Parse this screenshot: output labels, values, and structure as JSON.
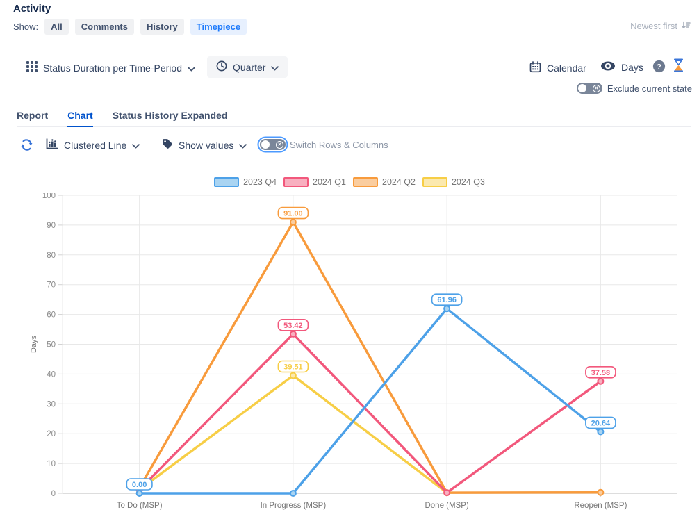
{
  "header": {
    "title": "Activity",
    "show_label": "Show:",
    "filters": [
      {
        "label": "All",
        "active": false
      },
      {
        "label": "Comments",
        "active": false
      },
      {
        "label": "History",
        "active": false
      },
      {
        "label": "Timepiece",
        "active": true
      }
    ],
    "sort_label": "Newest first"
  },
  "toolbar": {
    "report_selector": "Status Duration per Time-Period",
    "period_selector": "Quarter",
    "calendar_label": "Calendar",
    "unit_label": "Days",
    "exclude_toggle_label": "Exclude current state"
  },
  "tabs": [
    {
      "label": "Report",
      "active": false
    },
    {
      "label": "Chart",
      "active": true
    },
    {
      "label": "Status History Expanded",
      "active": false
    }
  ],
  "chart_toolbar": {
    "chart_type_label": "Clustered Line",
    "show_values_label": "Show values",
    "switch_label": "Switch Rows & Columns"
  },
  "chart_data": {
    "type": "line",
    "title": "Status Duration per Time-Period (Quarter)",
    "categories": [
      "To Do (MSP)",
      "In Progress (MSP)",
      "Done (MSP)",
      "Reopen (MSP)"
    ],
    "xlabel": "",
    "ylabel": "Days",
    "ylim": [
      0,
      100
    ],
    "ytick_step": 10,
    "grid": true,
    "legend_position": "top",
    "series": [
      {
        "name": "2023 Q4",
        "color": "#4DA1E8",
        "fill": "#A9D4F2",
        "values": [
          0,
          0,
          61.96,
          20.64
        ],
        "labels": [
          "0.00",
          null,
          "61.96",
          "20.64"
        ]
      },
      {
        "name": "2024 Q1",
        "color": "#F2587C",
        "fill": "#F8B0C0",
        "values": [
          1.2,
          53.42,
          0.2,
          37.58
        ],
        "labels": [
          null,
          "53.42",
          null,
          "37.58"
        ]
      },
      {
        "name": "2024 Q2",
        "color": "#F89B3C",
        "fill": "#FACD9F",
        "values": [
          1.8,
          91.0,
          0.2,
          0.3
        ],
        "labels": [
          null,
          "91.00",
          null,
          null
        ]
      },
      {
        "name": "2024 Q3",
        "color": "#F7CE46",
        "fill": "#FBE9AF",
        "values": [
          1.2,
          39.51,
          0.2,
          null
        ],
        "labels": [
          null,
          "39.51",
          null,
          null
        ]
      }
    ]
  }
}
